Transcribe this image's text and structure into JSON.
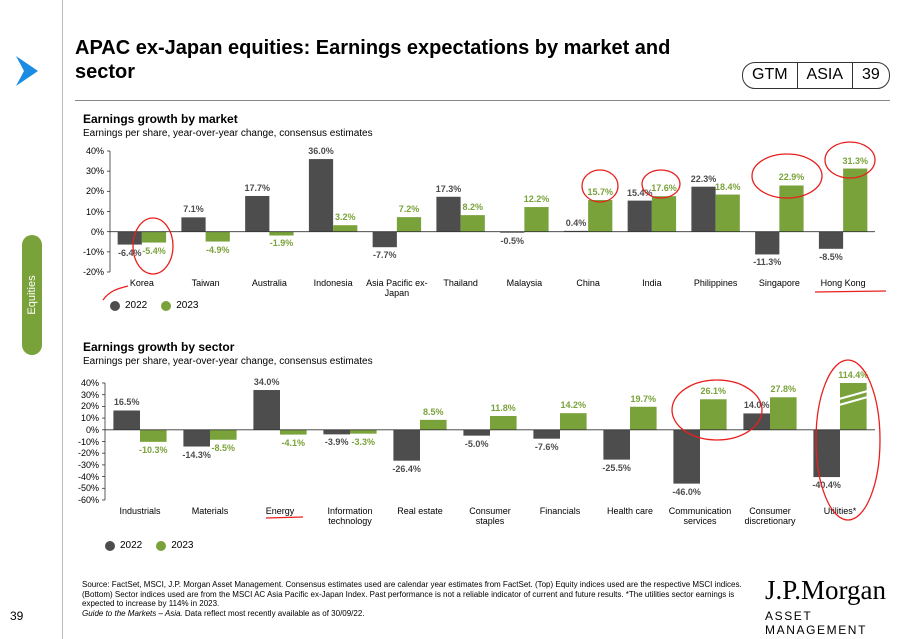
{
  "header": {
    "title": "APAC ex-Japan equities: Earnings expectations by market and sector",
    "badge": [
      "GTM",
      "ASIA",
      "39"
    ]
  },
  "sidebar": {
    "section": "Equities",
    "page": "39"
  },
  "chart_data": [
    {
      "type": "bar",
      "title": "Earnings growth by market",
      "subtitle": "Earnings per share, year-over-year change, consensus estimates",
      "categories": [
        "Korea",
        "Taiwan",
        "Australia",
        "Indonesia",
        "Asia Pacific ex-Japan",
        "Thailand",
        "Malaysia",
        "China",
        "India",
        "Philippines",
        "Singapore",
        "Hong Kong"
      ],
      "series": [
        {
          "name": "2022",
          "color": "#4d4d4d",
          "values": [
            -6.4,
            7.1,
            17.7,
            36.0,
            -7.7,
            17.3,
            -0.5,
            0.4,
            15.4,
            22.3,
            -11.3,
            -8.5
          ],
          "value_labels": [
            "-6.4%",
            "7.1%",
            "17.7%",
            "36.0%",
            "-7.7%",
            "17.3%",
            "-0.5%",
            "0.4%",
            "15.4%",
            "22.3%",
            "-11.3%",
            "-8.5%"
          ]
        },
        {
          "name": "2023",
          "color": "#7aa23a",
          "values": [
            -5.4,
            -4.9,
            -1.9,
            3.2,
            7.2,
            8.2,
            12.2,
            15.7,
            17.6,
            18.4,
            22.9,
            31.3
          ],
          "value_labels": [
            "-5.4%",
            "-4.9%",
            "-1.9%",
            "3.2%",
            "7.2%",
            "8.2%",
            "12.2%",
            "15.7%",
            "17.6%",
            "18.4%",
            "22.9%",
            "31.3%"
          ]
        }
      ],
      "ylim": [
        -20,
        40
      ],
      "yticks": [
        {
          "value": -20,
          "label": "-20%"
        },
        {
          "value": -10,
          "label": "-10%"
        },
        {
          "value": 0,
          "label": "0%"
        },
        {
          "value": 10,
          "label": "10%"
        },
        {
          "value": 20,
          "label": "20%"
        },
        {
          "value": 30,
          "label": "30%"
        },
        {
          "value": 40,
          "label": "40%"
        }
      ],
      "legend": "bottom-left"
    },
    {
      "type": "bar",
      "title": "Earnings growth by sector",
      "subtitle": "Earnings per share, year-over-year change, consensus estimates",
      "categories": [
        "Industrials",
        "Materials",
        "Energy",
        "Information technology",
        "Real estate",
        "Consumer staples",
        "Financials",
        "Health care",
        "Communication services",
        "Consumer discretionary",
        "Utilities*"
      ],
      "series": [
        {
          "name": "2022",
          "color": "#4d4d4d",
          "values": [
            16.5,
            -14.3,
            34.0,
            -3.9,
            -26.4,
            -5.0,
            -7.6,
            -25.5,
            -46.0,
            14.0,
            -40.4
          ],
          "value_labels": [
            "16.5%",
            "-14.3%",
            "34.0%",
            "-3.9%",
            "-26.4%",
            "-5.0%",
            "-7.6%",
            "-25.5%",
            "-46.0%",
            "14.0%",
            "-40.4%"
          ]
        },
        {
          "name": "2023",
          "color": "#7aa23a",
          "values": [
            -10.3,
            -8.5,
            -4.1,
            -3.3,
            8.5,
            11.8,
            14.2,
            19.7,
            26.1,
            27.8,
            114.4
          ],
          "value_labels": [
            "-10.3%",
            "-8.5%",
            "-4.1%",
            "-3.3%",
            "8.5%",
            "11.8%",
            "14.2%",
            "19.7%",
            "26.1%",
            "27.8%",
            "114.4%"
          ]
        }
      ],
      "ylim": [
        -60,
        40
      ],
      "yticks": [
        {
          "value": -60,
          "label": "-60%"
        },
        {
          "value": -50,
          "label": "-50%"
        },
        {
          "value": -40,
          "label": "-40%"
        },
        {
          "value": -30,
          "label": "-30%"
        },
        {
          "value": -20,
          "label": "-20%"
        },
        {
          "value": -10,
          "label": "-10%"
        },
        {
          "value": 0,
          "label": "0%"
        },
        {
          "value": 10,
          "label": "10%"
        },
        {
          "value": 20,
          "label": "20%"
        },
        {
          "value": 30,
          "label": "30%"
        },
        {
          "value": 40,
          "label": "40%"
        }
      ],
      "legend": "bottom-left"
    }
  ],
  "footnote": {
    "source": "Source: FactSet, MSCI, J.P. Morgan Asset Management. Consensus estimates used are calendar year estimates from FactSet. (Top) Equity indices used are the respective MSCI indices. (Bottom) Sector indices used are from the MSCI AC Asia Pacific ex-Japan Index. Past performance is not a reliable indicator of current and future results. *The utilities sector earnings is expected to increase by 114% in 2023.",
    "guide": "Guide to the Markets – Asia.",
    "note": "Data reflect most recently available as of 30/09/22."
  },
  "logo": {
    "name": "J.P.Morgan",
    "tagline": "ASSET MANAGEMENT"
  }
}
